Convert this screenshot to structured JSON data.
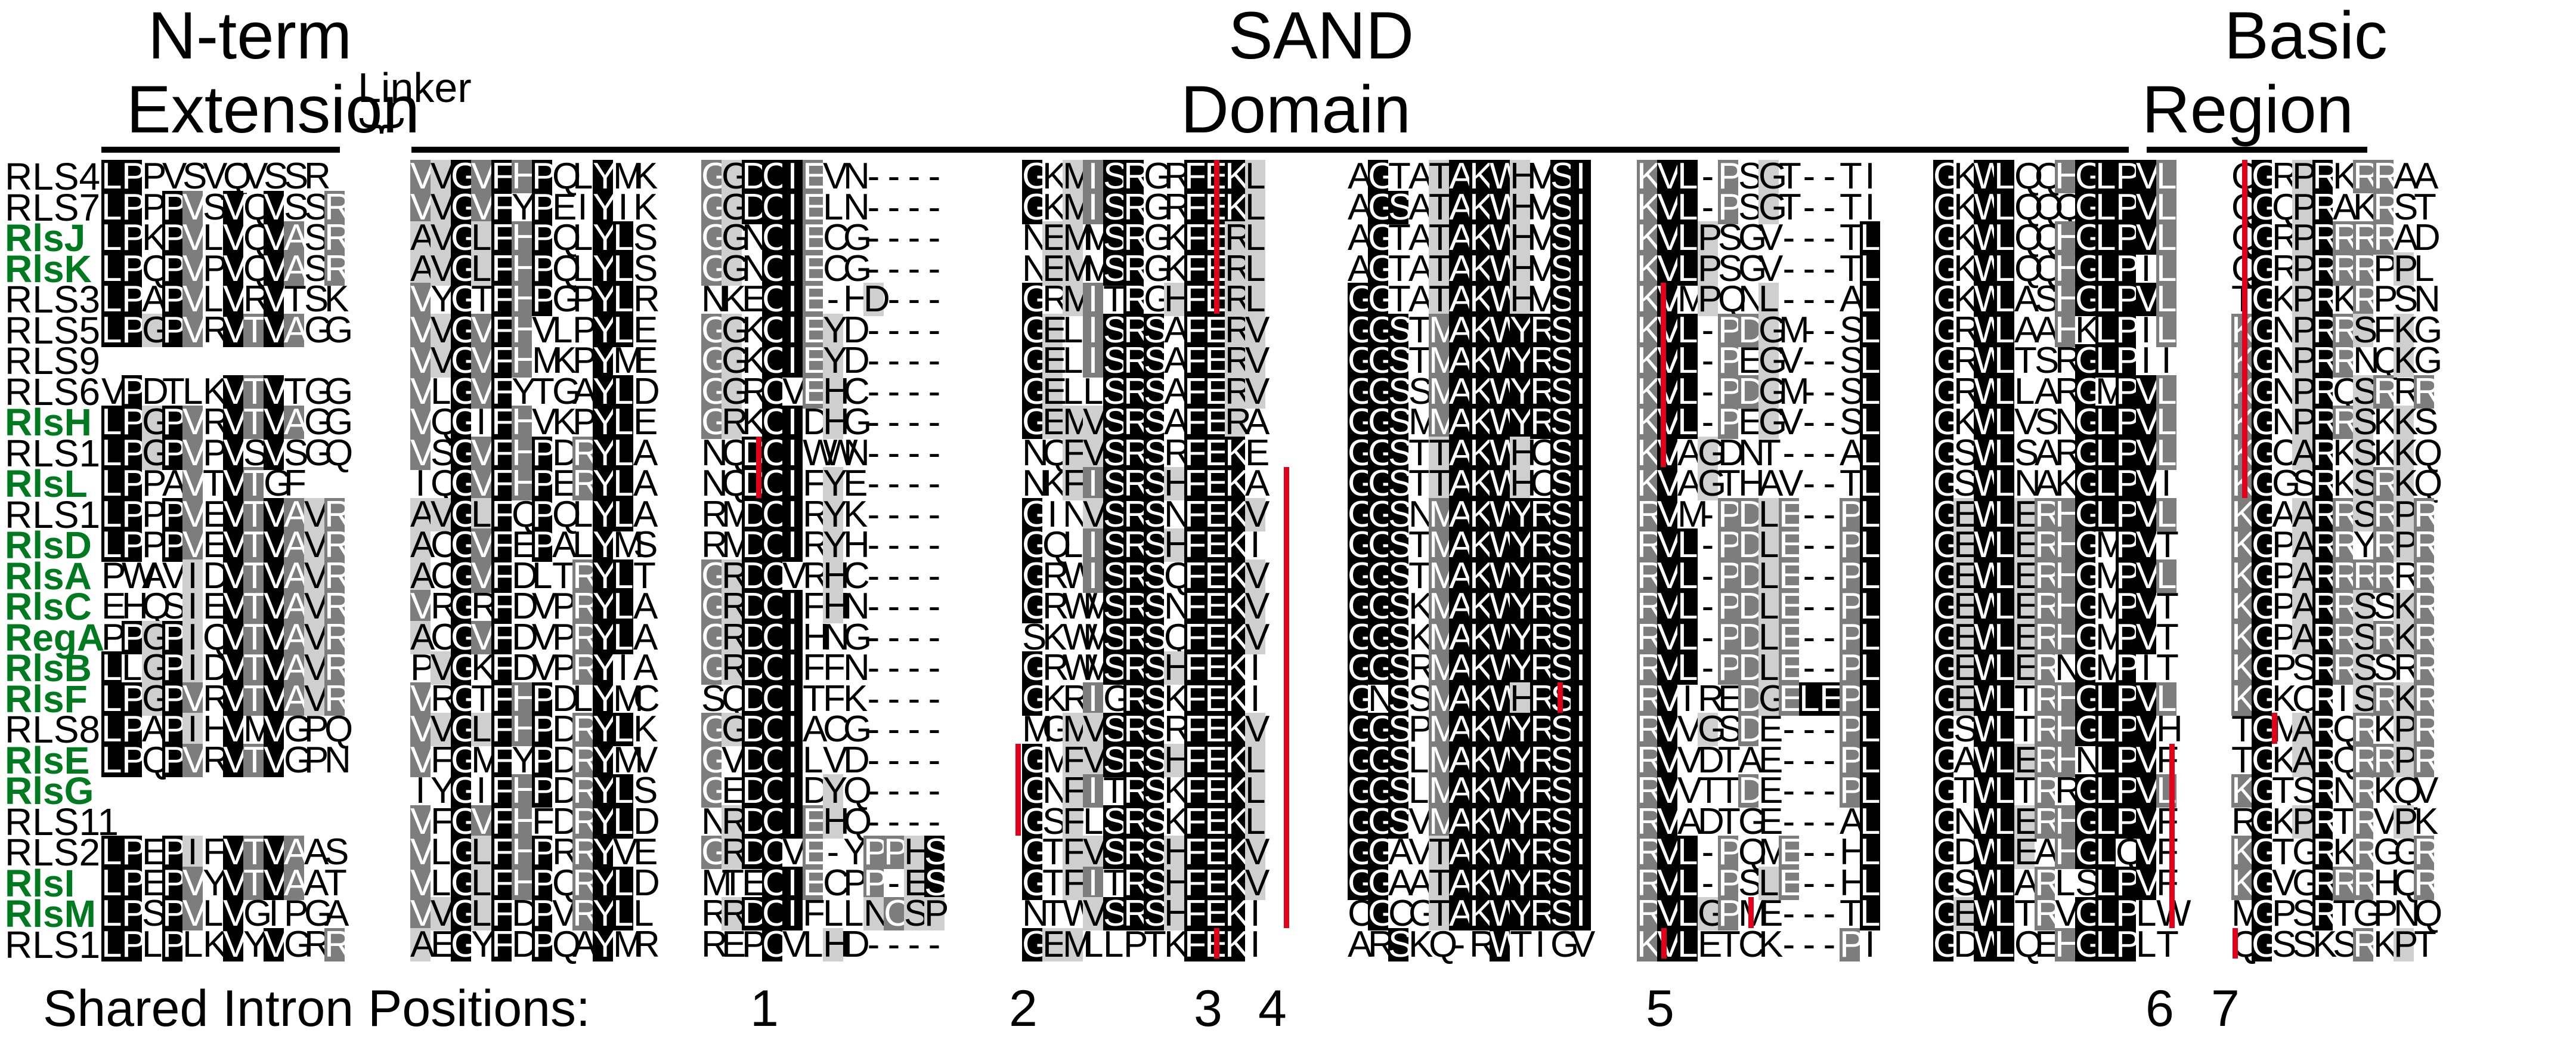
{
  "headers": {
    "nterm_line1": "N-term",
    "nterm_line2": "Extension",
    "linker": "Linker",
    "sand_line1": "SAND",
    "sand_line2": "Domain",
    "basic_line1": "Basic",
    "basic_line2": "Region"
  },
  "footer_label": "Shared Intron Positions:",
  "intron_positions": [
    "1",
    "2",
    "3",
    "4",
    "5",
    "6",
    "7"
  ],
  "colors": {
    "identical": "#000000",
    "similar": "#7d7d7d",
    "weak": "#cfcfcf",
    "intron": "#e3001b",
    "green_name": "#007a1e"
  },
  "rows": [
    {
      "name": "RLS4",
      "green": false
    },
    {
      "name": "RLS7",
      "green": false
    },
    {
      "name": "RlsJ",
      "green": true
    },
    {
      "name": "RlsK",
      "green": true
    },
    {
      "name": "RLS3",
      "green": false
    },
    {
      "name": "RLS5",
      "green": false
    },
    {
      "name": "RLS9",
      "green": false
    },
    {
      "name": "RLS6",
      "green": false
    },
    {
      "name": "RlsH",
      "green": true
    },
    {
      "name": "RLS10",
      "green": false
    },
    {
      "name": "RlsL",
      "green": true
    },
    {
      "name": "RLS1",
      "green": false
    },
    {
      "name": "RlsD",
      "green": true
    },
    {
      "name": "RlsA",
      "green": true
    },
    {
      "name": "RlsC",
      "green": true
    },
    {
      "name": "RegA",
      "green": true
    },
    {
      "name": "RlsB",
      "green": true
    },
    {
      "name": "RlsF",
      "green": true
    },
    {
      "name": "RLS8",
      "green": false
    },
    {
      "name": "RlsE",
      "green": true
    },
    {
      "name": "RlsG",
      "green": true
    },
    {
      "name": "RLS11",
      "green": false
    },
    {
      "name": "RLS2",
      "green": false
    },
    {
      "name": "RlsI",
      "green": true
    },
    {
      "name": "RlsM",
      "green": true
    },
    {
      "name": "RLS12",
      "green": false
    }
  ],
  "blocks": [
    {
      "seqs": [
        "LPPVSVQVSSR",
        "LPPPVSVQVSSR",
        "LPKPVLVQVASR",
        "LPQPVPVQVASR",
        "LPAPVLVRVTSK",
        "LPGPVRVTVAGG",
        "",
        "VPDTLKVTVTGG",
        "LPGPVRVTVAGG",
        "LPGPVPVSVSGQ",
        "LPPAVTVTGF",
        "LPPPVEVTVAVR",
        "LPPPVEVTVAVR",
        "PWAVIDVTVAVR",
        "EHQSIEVTVAVR",
        "PPGPIQVTVAVR",
        "LLGPIDVTVAVR",
        "LPGPVRVTVAVR",
        "LPAPIHVMVGPQ",
        "LPQPVRVTVGPN",
        "",
        "",
        "LPEPIFVTVAAS",
        "LPEPVYVTVAAT",
        "LPSPVLVGIPGA",
        "LPLPLKVYVGRR"
      ]
    },
    {
      "seqs": [
        "VVGVFHPQLYMK",
        "VVGVFYPEIYIK",
        "AVGLFHPQLYLS",
        "AVGLFHPQLYLS",
        "VYGTFHPGPYLR",
        "VVGVFHVLPYLE",
        "VVGVFHMKPYME",
        "VLGVFYTGAYLD",
        "VQGIFHVKPYLE",
        "VSGVFHPDRYLA",
        "IQGVFHPERYLA",
        "AVGLFQPQLYLA",
        "ACGVFEPALYMS",
        "ACGVFDLTRYLT",
        "VRGRFDVPRYLA",
        "ACGVFDVPRYLA",
        "PVGKFDVPRYIA",
        "VRGTFHPDLYMC",
        "VVGLFHPDRYLK",
        "VFGMFYPDRYMV",
        "IYGIFHPDRYLS",
        "VFGVFHFDRYLD",
        "VLGLFHPRRYVE",
        "VLGLFHPQRYLD",
        "VVGLFDPVRYLL",
        "AEGYFDPQAYMR"
      ]
    },
    {
      "seqs": [
        "GGDCIEVN----",
        "GGDCIELN----",
        "GGNCIECG----",
        "GGNCIECG----",
        "NKECIE-HD---",
        "GGKCIEYD----",
        "GGKCIEYD----",
        "GGRCVEHC----",
        "GRKCIDHG----",
        "NQDCIWWN----",
        "NQDCIFYE----",
        "RMDCIRYK----",
        "RMDCIRYH----",
        "GRDCVRHC----",
        "GRDCIFHN----",
        "GRDCIHNG----",
        "GRDCIFFN----",
        "SQDCITFK----",
        "GGDCIACG----",
        "GVDCILVD----",
        "GEDCIDYQ----",
        "NRDCIEHQ----",
        "GRDCVE-YPPHS",
        "MTECIECPP-ES",
        "RRDCIFLLNCSP",
        "REPCVLHD----"
      ]
    },
    {
      "seqs": [
        "GKMISRGRFEKL",
        "GKMISRGRFEKL",
        "NEMMSRGKFERL",
        "NEMMSRGKFERL",
        "GRMITRGHFERL",
        "GELISRSAFERV",
        "GELISRSAFERV",
        "GELLSRSAFERV",
        "GEMVSRSAFERA",
        "NQFVSRSRFEKE",
        "NKFISRSHFEKA",
        "GINVSRSNFEKV",
        "GQLISRSHFEKI",
        "GRWISRSQFEKV",
        "GRWMSRSNFEKV",
        "SKWMSRSQFEKV",
        "GRWMSRSHFEKI",
        "GKRIGRSKFEKI",
        "MGMVSRSRFEKV",
        "GMFVSRSHFEKL",
        "GNFITRSKFEKL",
        "GSFLSRSKFEKL",
        "GTFVSRSHFEKV",
        "GTFITRSHFEKV",
        "NTWVSRSHFEKI",
        "GEMLLPTKFEKI"
      ]
    },
    {
      "seqs": [
        "AGTATAKWHVSI",
        "AGSATAKWHVSI",
        "AGTATAKWHVSI",
        "AGTATAKWHVSI",
        "GGTATAKWHVSI",
        "GGSTMAKWYRSI",
        "GGSTMAKWYRSI",
        "GGSSMAKWYRSI",
        "GGSMMAKWYRSI",
        "GGSTTAKWHCSI",
        "GGSTTAKWHCSI",
        "GGSNMAKWYRSI",
        "GGSTMAKWYRSI",
        "GGSTMAKWYRSI",
        "GGSKMAKWYRSI",
        "GGSKMAKWYRSI",
        "GGSRMAKWYRSI",
        "GNSSMAKWHRSI",
        "GGSPMAKWYRSI",
        "GGSLMAKWYRSI",
        "GGSLMAKWYRSI",
        "GGSVMAKWYRSI",
        "GGAVTAKWYRSI",
        "GGAATAKWYRSI",
        "CGCGTAKWYRSI",
        "ARSKQ-RWTIGV"
      ]
    },
    {
      "seqs": [
        "KVL-PSGT--TI",
        "KVL-PSGT--TI",
        "KVLPSGV---TL",
        "KVLPSGV---TL",
        "KVMPQNL---AL",
        "KVL-PDGM--SL",
        "KVL-PEGV--SL",
        "KVL-PDGM--SL",
        "KVL-PEGV--SL",
        "KVAGDNT---AL",
        "KVAGTHAV--TL",
        "RVM-PDLE--PL",
        "RVL-PDLE--PL",
        "RVL-PDLE--PL",
        "RVL-PDLE--PL",
        "RVL-PDLE--PL",
        "RVL-PDLE--PL",
        "RVIREDGELEPL",
        "RVVGSDE---PL",
        "RVVDTAE---PL",
        "RVVTTDE---PL",
        "RVADTGE---AL",
        "RVL-PQME--HL",
        "RVL-PSLE--HL",
        "RVLGPME---TL",
        "KVLETCK---PI"
      ]
    },
    {
      "seqs": [
        "GKWLQQHGLPVL",
        "GKWLQQQGLPVL",
        "GKWLQQHGLPVL",
        "GKWLQQHGLPIL",
        "GKWLASHGLPVL",
        "GRWLAAHKLPIL",
        "GRWLTSRGLPII",
        "GRWLLARGMPVL",
        "GKWLVSNGLPVL",
        "GSWLSARGLPVL",
        "GSWLNAKGLPVI",
        "GEWLERHGLPVL",
        "GEWLERHGMPVT",
        "GEWLERHGMPVL",
        "GEWLERHGMPVT",
        "GEWLERHGMPVT",
        "GEWLERNGMPIT",
        "GEWLTRHGLPVL",
        "GSWLTRHGLPVH",
        "GAWLERHNLPVF",
        "GTWLTRRGLPVL",
        "GNWLERHGLPVF",
        "GDWLEAHGLQVF",
        "GSWLARLSLPVF",
        "GEWLTRVGLPLW",
        "GDWLQEHGLPLT"
      ]
    },
    {
      "seqs": [
        "QGRPRKRRAA",
        "QGQPRAKRST",
        "QGRPRRRRAD",
        "QGRPRRRPPL",
        "TGKPRKRPSN",
        "KGNPRRSFKG",
        "KGNPRRNQKG",
        "KGNPRQSRRR",
        "KGNPRRSKKS",
        "KGCARKSKKQ",
        "KGGSRKSRKQ",
        "KGAARRSRPR",
        "KGPARRYRPR",
        "KGPARRRRRR",
        "KGPARRSSKR",
        "KGPARRSRKR",
        "KGPSRRSSRR",
        "KGKQRISRKR",
        "TGMARQRKPR",
        "TGKARQRRPR",
        "KGTSRNRKQV",
        "RGKPRTRVPK",
        "KGTGRKRGGR",
        "KGVGRRRHQR",
        "MGPSRTGPNQ",
        "QGSSKSRKPT"
      ]
    }
  ]
}
